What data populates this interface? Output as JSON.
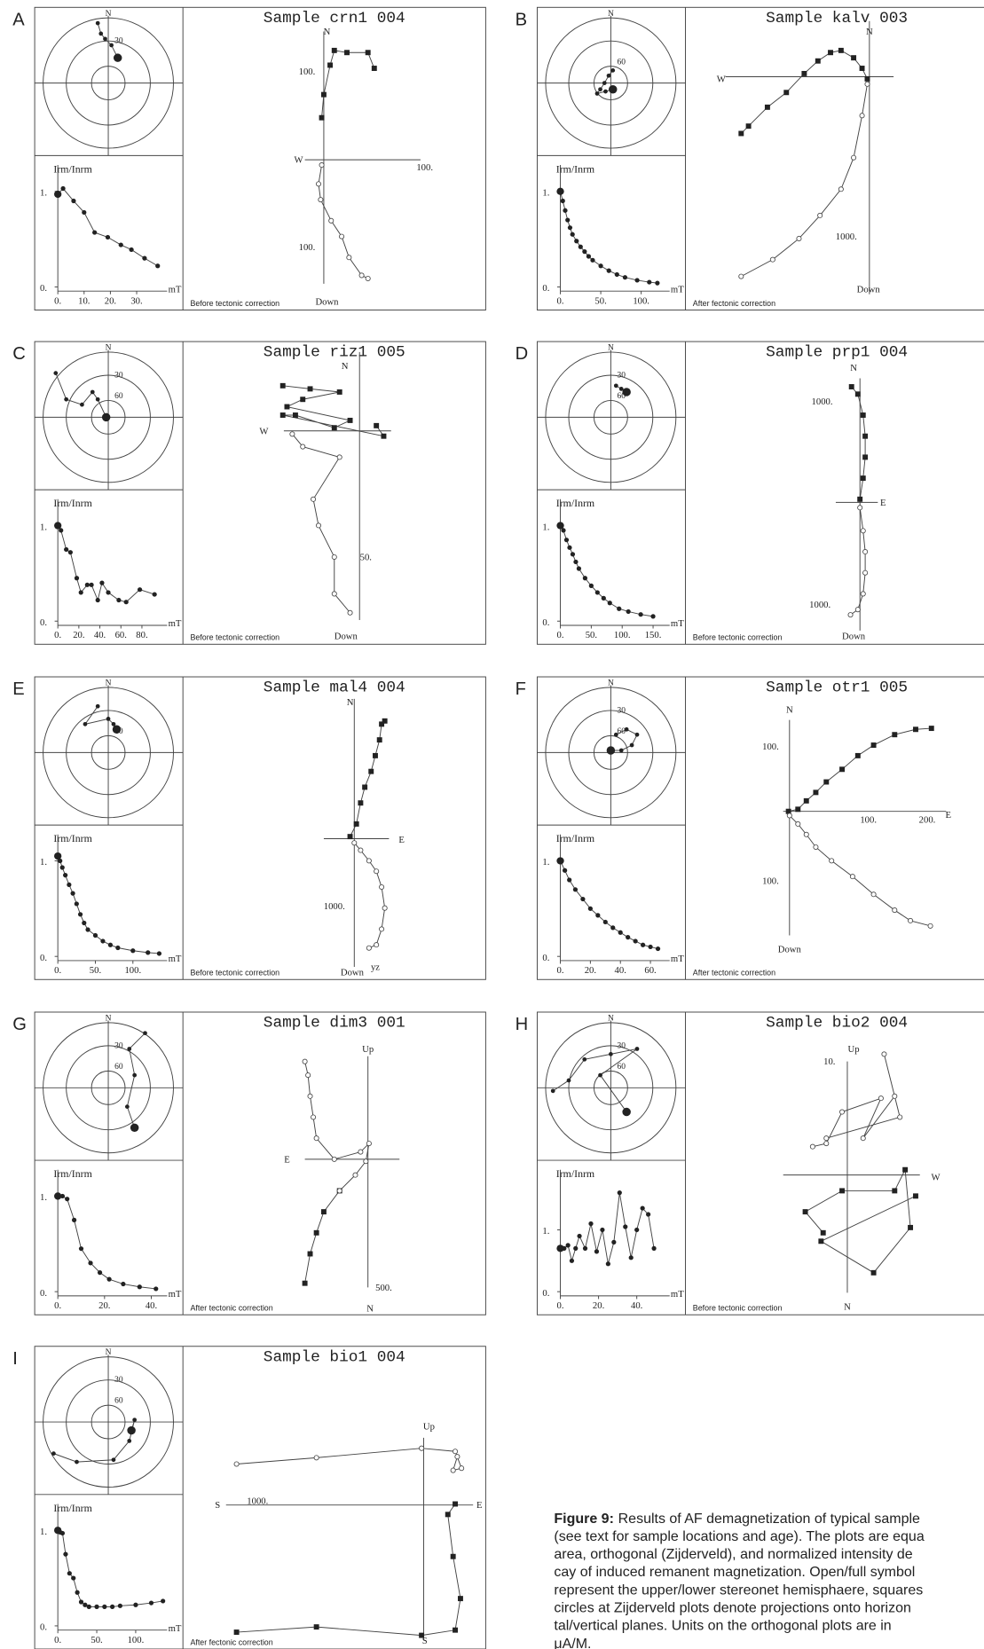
{
  "panels": [
    {
      "label": "A",
      "title": "Sample crn1 004",
      "correction": "Before tectonic correction",
      "stereonet_labels": [
        "N",
        "30"
      ],
      "decay": {
        "y_label": "Irm/Inrm",
        "unit": "mT",
        "xlim": [
          0,
          40
        ],
        "ylim": [
          0,
          1.1
        ],
        "xticks": [
          {
            "value": 0,
            "label": "0."
          },
          {
            "value": 10,
            "label": "10."
          },
          {
            "value": 20,
            "label": "20."
          },
          {
            "value": 30,
            "label": "30."
          }
        ],
        "yticks": [
          {
            "value": 1,
            "label": "1."
          },
          {
            "value": 0,
            "label": "0."
          }
        ],
        "x": [
          0,
          2,
          6,
          10,
          14,
          19,
          24,
          28,
          33,
          38
        ],
        "y": [
          0.97,
          1.03,
          0.9,
          0.78,
          0.57,
          0.52,
          0.44,
          0.39,
          0.3,
          0.22
        ]
      },
      "zijderveld_labels": [
        "N",
        "W",
        "100.",
        "100.",
        "100.",
        "Down"
      ]
    },
    {
      "label": "B",
      "title": "Sample kalv 003",
      "correction": "After fectonic correction",
      "stereonet_labels": [
        "N",
        "60"
      ],
      "decay": {
        "y_label": "Irm/Inrm",
        "unit": "mT",
        "xlim": [
          0,
          130
        ],
        "ylim": [
          0,
          1.1
        ],
        "xticks": [
          {
            "value": 0,
            "label": "0."
          },
          {
            "value": 50,
            "label": "50."
          },
          {
            "value": 100,
            "label": "100."
          }
        ],
        "yticks": [
          {
            "value": 1,
            "label": "1."
          },
          {
            "value": 0,
            "label": "0."
          }
        ],
        "x": [
          0,
          3,
          6,
          9,
          12,
          15,
          20,
          25,
          30,
          35,
          40,
          50,
          60,
          70,
          80,
          95,
          110,
          120
        ],
        "y": [
          1.0,
          0.9,
          0.8,
          0.7,
          0.62,
          0.55,
          0.48,
          0.42,
          0.37,
          0.32,
          0.28,
          0.22,
          0.17,
          0.13,
          0.1,
          0.07,
          0.05,
          0.04
        ]
      },
      "zijderveld_labels": [
        "N",
        "W",
        "1000.",
        "Down"
      ]
    },
    {
      "label": "C",
      "title": "Sample riz1 005",
      "correction": "Before tectonic correction",
      "stereonet_labels": [
        "N",
        "30",
        "60"
      ],
      "decay": {
        "y_label": "Irm/Inrm",
        "unit": "mT",
        "xlim": [
          0,
          100
        ],
        "ylim": [
          0,
          1.1
        ],
        "xticks": [
          {
            "value": 0,
            "label": "0."
          },
          {
            "value": 20,
            "label": "20."
          },
          {
            "value": 40,
            "label": "40."
          },
          {
            "value": 60,
            "label": "60."
          },
          {
            "value": 80,
            "label": "80."
          }
        ],
        "yticks": [
          {
            "value": 1,
            "label": "1."
          },
          {
            "value": 0,
            "label": "0."
          }
        ],
        "x": [
          0,
          3,
          8,
          12,
          18,
          22,
          28,
          32,
          38,
          42,
          48,
          58,
          65,
          78,
          92
        ],
        "y": [
          1.0,
          0.95,
          0.75,
          0.72,
          0.45,
          0.3,
          0.38,
          0.38,
          0.22,
          0.4,
          0.3,
          0.22,
          0.2,
          0.33,
          0.28
        ]
      },
      "zijderveld_labels": [
        "N",
        "W",
        "50.",
        "Down"
      ]
    },
    {
      "label": "D",
      "title": "Sample prp1 004",
      "correction": "Before tectonic correction",
      "stereonet_labels": [
        "N",
        "30",
        "60"
      ],
      "decay": {
        "y_label": "Irm/Inrm",
        "unit": "mT",
        "xlim": [
          0,
          170
        ],
        "ylim": [
          0,
          1.1
        ],
        "xticks": [
          {
            "value": 0,
            "label": "0."
          },
          {
            "value": 50,
            "label": "50."
          },
          {
            "value": 100,
            "label": "100."
          },
          {
            "value": 150,
            "label": "150."
          }
        ],
        "yticks": [
          {
            "value": 1,
            "label": "1."
          },
          {
            "value": 0,
            "label": "0."
          }
        ],
        "x": [
          0,
          5,
          10,
          15,
          20,
          25,
          30,
          40,
          50,
          60,
          70,
          80,
          95,
          110,
          130,
          150
        ],
        "y": [
          1.0,
          0.95,
          0.85,
          0.77,
          0.7,
          0.62,
          0.55,
          0.45,
          0.37,
          0.3,
          0.24,
          0.19,
          0.13,
          0.1,
          0.07,
          0.05
        ]
      },
      "zijderveld_labels": [
        "N",
        "1000.",
        "E",
        "1000.",
        "Down"
      ]
    },
    {
      "label": "E",
      "title": "Sample mal4 004",
      "correction": "Before tectonic correction",
      "stereonet_labels": [
        "N",
        "60"
      ],
      "decay": {
        "y_label": "Irm/Inrm",
        "unit": "mT",
        "xlim": [
          0,
          140
        ],
        "ylim": [
          0,
          1.1
        ],
        "xticks": [
          {
            "value": 0,
            "label": "0."
          },
          {
            "value": 50,
            "label": "50."
          },
          {
            "value": 100,
            "label": "100."
          }
        ],
        "yticks": [
          {
            "value": 1,
            "label": "1."
          },
          {
            "value": 0,
            "label": "0."
          }
        ],
        "x": [
          0,
          3,
          6,
          10,
          15,
          20,
          25,
          30,
          35,
          40,
          50,
          60,
          70,
          80,
          100,
          120,
          135
        ],
        "y": [
          1.05,
          1.0,
          0.93,
          0.85,
          0.75,
          0.66,
          0.55,
          0.44,
          0.35,
          0.28,
          0.22,
          0.16,
          0.12,
          0.09,
          0.06,
          0.04,
          0.03
        ]
      },
      "zijderveld_labels": [
        "N",
        "E",
        "1000.",
        "Down",
        "yz"
      ]
    },
    {
      "label": "F",
      "title": "Sample otr1 005",
      "correction": "After tectonic correction",
      "stereonet_labels": [
        "N",
        "30",
        "60"
      ],
      "decay": {
        "y_label": "Irm/Inrm",
        "unit": "mT",
        "xlim": [
          0,
          70
        ],
        "ylim": [
          0,
          1.1
        ],
        "xticks": [
          {
            "value": 0,
            "label": "0."
          },
          {
            "value": 20,
            "label": "20."
          },
          {
            "value": 40,
            "label": "40."
          },
          {
            "value": 60,
            "label": "60."
          }
        ],
        "yticks": [
          {
            "value": 1,
            "label": "1."
          },
          {
            "value": 0,
            "label": "0."
          }
        ],
        "x": [
          0,
          3,
          6,
          10,
          15,
          20,
          25,
          30,
          35,
          40,
          45,
          50,
          55,
          60,
          65
        ],
        "y": [
          1.0,
          0.9,
          0.8,
          0.7,
          0.6,
          0.5,
          0.43,
          0.36,
          0.3,
          0.25,
          0.2,
          0.16,
          0.12,
          0.1,
          0.08
        ]
      },
      "zijderveld_labels": [
        "N",
        "100.",
        "100.",
        "200.",
        "E",
        "100.",
        "Down"
      ]
    },
    {
      "label": "G",
      "title": "Sample dim3 001",
      "correction": "After tectonic correction",
      "stereonet_labels": [
        "N",
        "30",
        "60"
      ],
      "decay": {
        "y_label": "Irm/Inrm",
        "unit": "mT",
        "xlim": [
          0,
          45
        ],
        "ylim": [
          0,
          1.1
        ],
        "xticks": [
          {
            "value": 0,
            "label": "0."
          },
          {
            "value": 20,
            "label": "20."
          },
          {
            "value": 40,
            "label": "40."
          }
        ],
        "yticks": [
          {
            "value": 1,
            "label": "1."
          },
          {
            "value": 0,
            "label": "0."
          }
        ],
        "x": [
          0,
          2,
          4,
          7,
          10,
          14,
          18,
          22,
          28,
          35,
          42
        ],
        "y": [
          1.0,
          1.0,
          0.97,
          0.75,
          0.45,
          0.3,
          0.2,
          0.13,
          0.08,
          0.05,
          0.03
        ]
      },
      "zijderveld_labels": [
        "Up",
        "E",
        "500.",
        "N"
      ]
    },
    {
      "label": "H",
      "title": "Sample bio2 004",
      "correction": "Before tectonic correction",
      "stereonet_labels": [
        "N",
        "30",
        "60"
      ],
      "decay": {
        "y_label": "Irm/Inrm",
        "unit": "mT",
        "xlim": [
          0,
          55
        ],
        "ylim": [
          0,
          1.7
        ],
        "xticks": [
          {
            "value": 0,
            "label": "0."
          },
          {
            "value": 20,
            "label": "20."
          },
          {
            "value": 40,
            "label": "40."
          }
        ],
        "yticks": [
          {
            "value": 1,
            "label": "1."
          },
          {
            "value": 0,
            "label": "0."
          }
        ],
        "x": [
          0,
          2,
          4,
          6,
          8,
          10,
          13,
          16,
          19,
          22,
          25,
          28,
          31,
          34,
          37,
          40,
          43,
          46,
          49
        ],
        "y": [
          0.7,
          0.7,
          0.75,
          0.5,
          0.7,
          0.9,
          0.7,
          1.1,
          0.65,
          1.0,
          0.45,
          0.8,
          1.6,
          1.05,
          0.55,
          1.0,
          1.35,
          1.25,
          0.7
        ]
      },
      "zijderveld_labels": [
        "Up",
        "10.",
        "W",
        "N"
      ]
    },
    {
      "label": "I",
      "title": "Sample bio1 004",
      "correction": "After fectonic correction",
      "stereonet_labels": [
        "N",
        "30",
        "60"
      ],
      "decay": {
        "y_label": "Irm/Inrm",
        "unit": "mT",
        "xlim": [
          0,
          135
        ],
        "ylim": [
          0,
          1.1
        ],
        "xticks": [
          {
            "value": 0,
            "label": "0."
          },
          {
            "value": 50,
            "label": "50."
          },
          {
            "value": 100,
            "label": "100."
          }
        ],
        "yticks": [
          {
            "value": 1,
            "label": "1."
          },
          {
            "value": 0,
            "label": "0."
          }
        ],
        "x": [
          0,
          3,
          6,
          10,
          15,
          20,
          25,
          30,
          35,
          40,
          50,
          60,
          70,
          80,
          100,
          120,
          135
        ],
        "y": [
          1.0,
          0.98,
          0.97,
          0.75,
          0.55,
          0.5,
          0.35,
          0.25,
          0.22,
          0.2,
          0.2,
          0.2,
          0.2,
          0.21,
          0.22,
          0.24,
          0.26
        ]
      },
      "zijderveld_labels": [
        "Up",
        "S",
        "1000.",
        "E",
        "S"
      ]
    }
  ],
  "caption": {
    "label": "Figure 9:",
    "lines": [
      "Results of AF demagnetization of typical sample",
      "(see text for sample locations and age). The plots are equa",
      "area, orthogonal (Zijderveld), and normalized intensity de",
      "cay of induced remanent magnetization. Open/full symbol",
      "represent the upper/lower stereonet hemisphaere, squares",
      "circles at Zijderveld plots denote projections onto horizon",
      "tal/vertical planes. Units on the orthogonal plots are in",
      "μA/M."
    ]
  }
}
